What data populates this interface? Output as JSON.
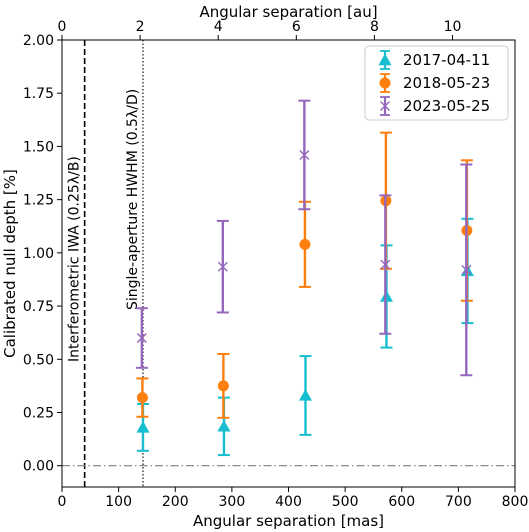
{
  "chart_data": {
    "type": "scatter",
    "title": "",
    "xlabel": "Angular separation [mas]",
    "ylabel": "Calibrated null depth [%]",
    "x2label": "Angular separation [au]",
    "xlim": [
      0,
      800
    ],
    "ylim": [
      -0.1,
      2.0
    ],
    "x2lim": [
      0,
      11.6
    ],
    "xticks": [
      "0",
      "100",
      "200",
      "300",
      "400",
      "500",
      "600",
      "700",
      "800"
    ],
    "yticks": [
      "0.00",
      "0.25",
      "0.50",
      "0.75",
      "1.00",
      "1.25",
      "1.50",
      "1.75",
      "2.00"
    ],
    "x2ticks": [
      "0",
      "2",
      "4",
      "6",
      "8",
      "10"
    ],
    "grid": false,
    "legend_position": "top-right",
    "series": [
      {
        "name": "2017-04-11",
        "marker": "triangle",
        "color": "#17becf",
        "points": [
          {
            "x": 143,
            "y": 0.18,
            "err": 0.11
          },
          {
            "x": 286,
            "y": 0.185,
            "err": 0.135
          },
          {
            "x": 430,
            "y": 0.33,
            "err": 0.185
          },
          {
            "x": 573,
            "y": 0.795,
            "err": 0.24
          },
          {
            "x": 716,
            "y": 0.915,
            "err": 0.245
          }
        ]
      },
      {
        "name": "2018-05-23",
        "marker": "circle",
        "color": "#ff7f0e",
        "points": [
          {
            "x": 142,
            "y": 0.32,
            "err": 0.09
          },
          {
            "x": 285,
            "y": 0.375,
            "err": 0.15
          },
          {
            "x": 429,
            "y": 1.04,
            "err": 0.2
          },
          {
            "x": 572,
            "y": 1.245,
            "err": 0.32
          },
          {
            "x": 715,
            "y": 1.105,
            "err": 0.33
          }
        ]
      },
      {
        "name": "2023-05-25",
        "marker": "x",
        "color": "#9467bd",
        "points": [
          {
            "x": 141,
            "y": 0.6,
            "err": 0.14
          },
          {
            "x": 284,
            "y": 0.935,
            "err": 0.215
          },
          {
            "x": 428,
            "y": 1.46,
            "err": 0.255
          },
          {
            "x": 571,
            "y": 0.945,
            "err": 0.325
          },
          {
            "x": 714,
            "y": 0.92,
            "err": 0.495
          }
        ]
      }
    ],
    "reference_lines": [
      {
        "orientation": "vertical",
        "x": 40,
        "style": "dashed",
        "label": "Interferometric IWA (0.25λ/B)"
      },
      {
        "orientation": "vertical",
        "x": 143,
        "style": "dotted",
        "label": "Single-aperture HWHM (0.5λ/D)"
      },
      {
        "orientation": "horizontal",
        "y": 0.0,
        "style": "dashdot",
        "color": "#7f7f7f",
        "label": ""
      }
    ]
  }
}
